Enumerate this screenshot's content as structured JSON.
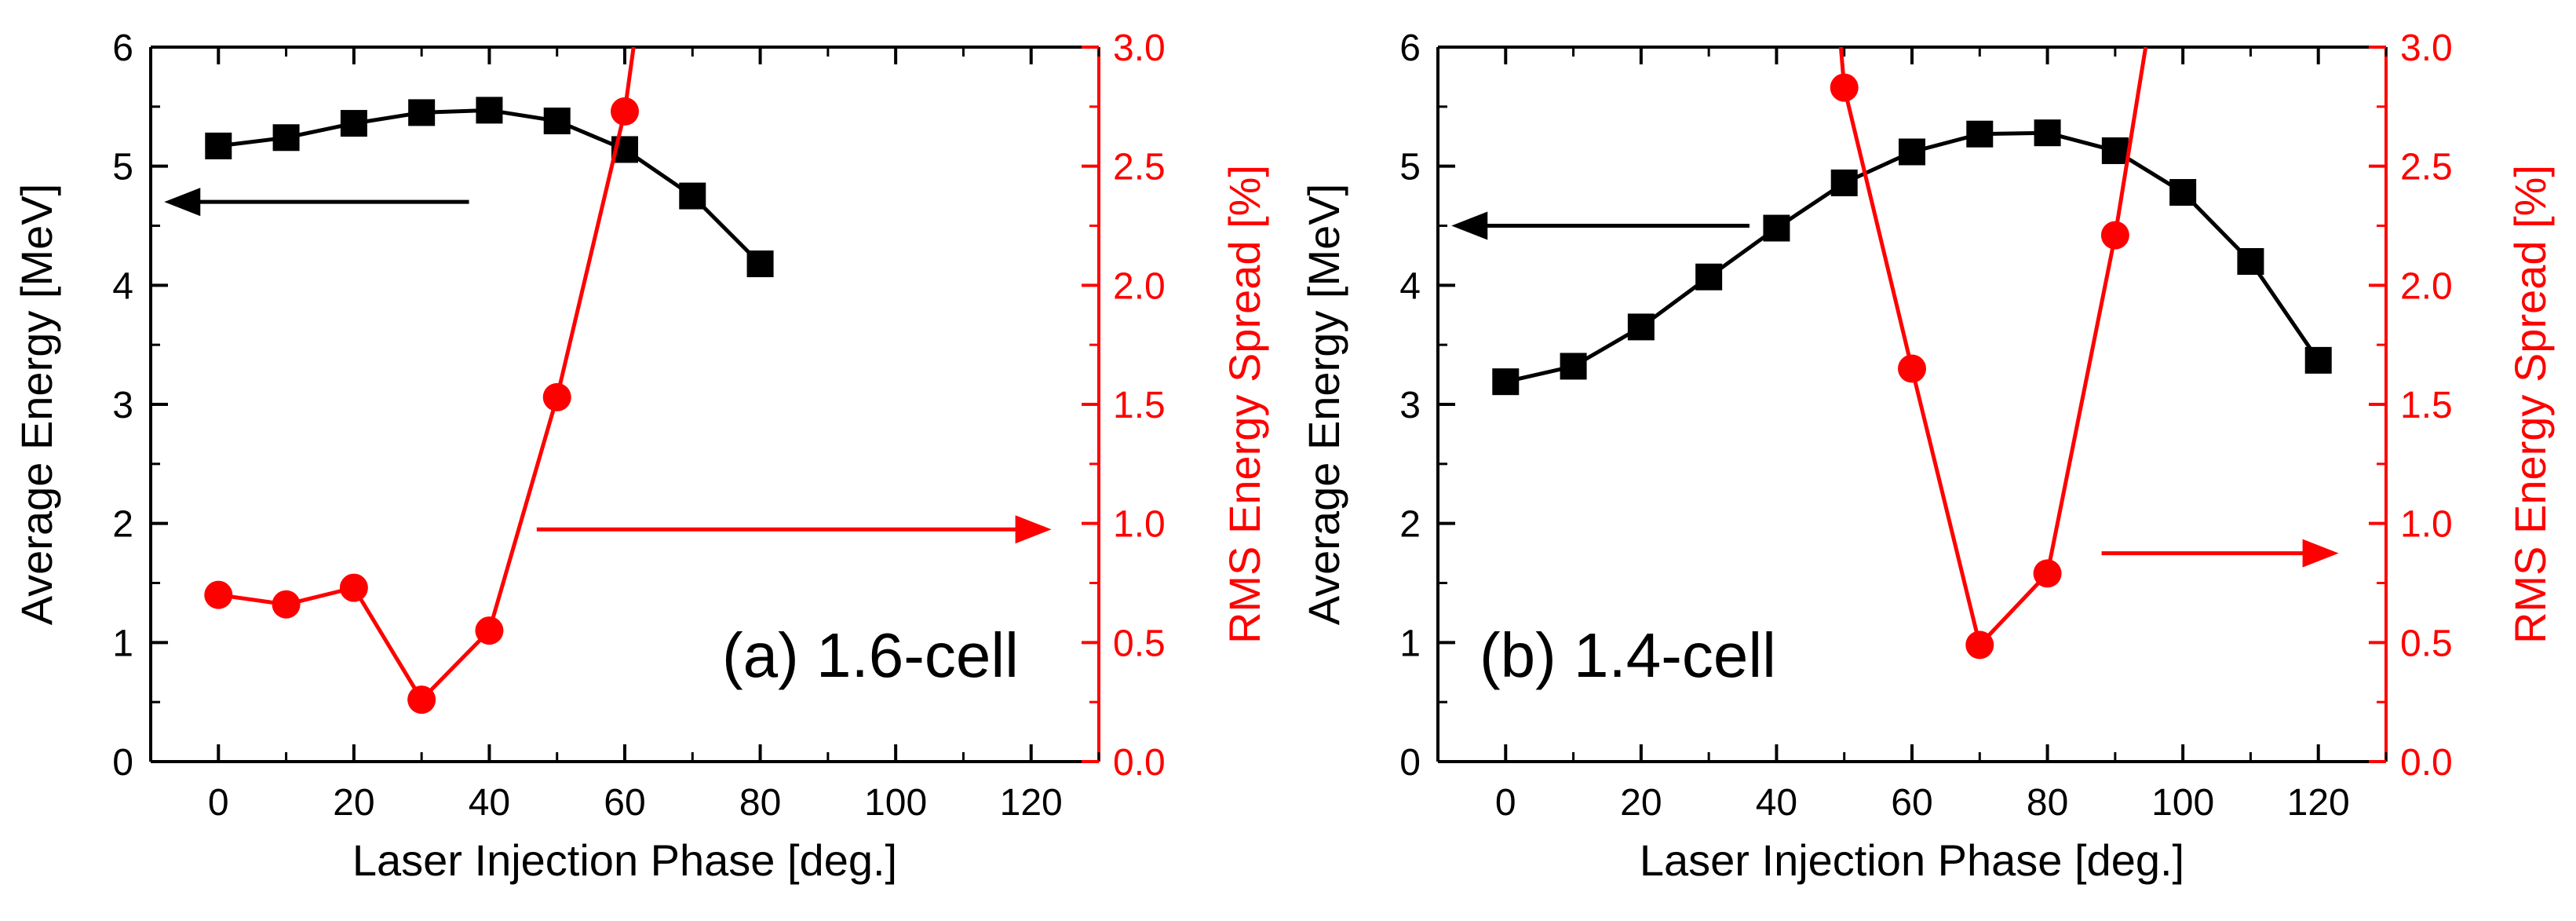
{
  "colors": {
    "left": "#000000",
    "right": "#ff0000",
    "frame": "#000000"
  },
  "chart_data": [
    {
      "type": "line",
      "panel_label": "(a) 1.6-cell",
      "xlabel": "Laser Injection Phase [deg.]",
      "ylabel": "Average Energy [MeV]",
      "y2label": "RMS Energy Spread [%]",
      "xlim": [
        -10,
        130
      ],
      "ylim": [
        0,
        6
      ],
      "y2lim": [
        0,
        3
      ],
      "xticks": [
        0,
        20,
        40,
        60,
        80,
        100,
        120
      ],
      "yticks": [
        0,
        1,
        2,
        3,
        4,
        5,
        6
      ],
      "y2ticks": [
        "0.0",
        "0.5",
        "1.0",
        "1.5",
        "2.0",
        "2.5",
        "3.0"
      ],
      "series": [
        {
          "name": "Average Energy",
          "axis": "left",
          "marker": "square",
          "x": [
            0,
            10,
            20,
            30,
            40,
            50,
            60,
            70,
            80
          ],
          "values": [
            5.17,
            5.24,
            5.36,
            5.45,
            5.47,
            5.38,
            5.14,
            4.75,
            4.18
          ]
        },
        {
          "name": "RMS Energy Spread",
          "axis": "right",
          "marker": "circle",
          "x": [
            0,
            10,
            20,
            30,
            40,
            50,
            60,
            61.3
          ],
          "values": [
            0.7,
            0.66,
            0.73,
            0.26,
            0.55,
            1.53,
            2.73,
            3.0
          ],
          "marker_count": 7
        }
      ],
      "arrows": [
        {
          "points_to": "left",
          "axis": "left",
          "x_from": 37,
          "x_to": -8,
          "y": 4.7
        },
        {
          "points_to": "right",
          "axis": "left",
          "x_from": 47,
          "x_to": 123,
          "y": 1.95
        }
      ]
    },
    {
      "type": "line",
      "panel_label": "(b) 1.4-cell",
      "xlabel": "Laser Injection Phase [deg.]",
      "ylabel": "Average Energy [MeV]",
      "y2label": "RMS Energy Spread [%]",
      "xlim": [
        -10,
        130
      ],
      "ylim": [
        0,
        6
      ],
      "y2lim": [
        0,
        3
      ],
      "xticks": [
        0,
        20,
        40,
        60,
        80,
        100,
        120
      ],
      "yticks": [
        0,
        1,
        2,
        3,
        4,
        5,
        6
      ],
      "y2ticks": [
        "0.0",
        "0.5",
        "1.0",
        "1.5",
        "2.0",
        "2.5",
        "3.0"
      ],
      "series": [
        {
          "name": "Average Energy",
          "axis": "left",
          "marker": "square",
          "x": [
            0,
            10,
            20,
            30,
            40,
            50,
            60,
            70,
            80,
            90,
            100,
            110,
            120
          ],
          "values": [
            3.19,
            3.32,
            3.65,
            4.07,
            4.48,
            4.86,
            5.12,
            5.27,
            5.28,
            5.13,
            4.78,
            4.2,
            3.37
          ]
        },
        {
          "name": "RMS Energy Spread",
          "axis": "right",
          "marker": "circle",
          "x": [
            49.5,
            50,
            60,
            70,
            80,
            90,
            94.5
          ],
          "values": [
            3.0,
            2.83,
            1.65,
            0.49,
            0.79,
            2.21,
            3.0
          ],
          "marker_x": [
            50,
            60,
            70,
            80,
            90
          ]
        }
      ],
      "arrows": [
        {
          "points_to": "left",
          "axis": "left",
          "x_from": 36,
          "x_to": -8,
          "y": 4.5
        },
        {
          "points_to": "right",
          "axis": "left",
          "x_from": 88,
          "x_to": 123,
          "y": 1.75
        }
      ]
    }
  ]
}
